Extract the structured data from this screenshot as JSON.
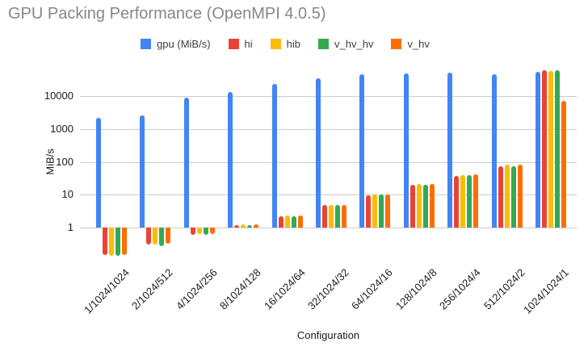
{
  "title": "GPU Packing Performance (OpenMPI 4.0.5)",
  "colors": {
    "blue": "#4285F4",
    "red": "#EA4335",
    "yellow": "#FBBC04",
    "green": "#34A853",
    "orange": "#FF6D01",
    "title_text": "#878787",
    "axis_text": "#1a1a1a",
    "gridline": "#cccccc"
  },
  "chart_data": {
    "type": "bar",
    "title": "GPU Packing Performance (OpenMPI 4.0.5)",
    "xlabel": "Configuration",
    "ylabel": "MiB/s",
    "y_scale": "log",
    "y_ticks": [
      1,
      10,
      100,
      1000,
      10000
    ],
    "ylim": [
      0.1,
      70000
    ],
    "grid": true,
    "legend_position": "top",
    "categories": [
      "1/1024/1024",
      "2/1024/512",
      "4/1024/256",
      "8/1024/128",
      "16/1024/64",
      "32/1024/32",
      "64/1024/16",
      "128/1024/8",
      "256/1024/4",
      "512/1024/2",
      "1024/1024/1"
    ],
    "series": [
      {
        "name": "gpu (MiB/s)",
        "color": "#4285F4",
        "values": [
          2200,
          2600,
          9000,
          13500,
          24000,
          34000,
          45000,
          48000,
          51000,
          45000,
          54000
        ]
      },
      {
        "name": "hi",
        "color": "#EA4335",
        "values": [
          0.15,
          0.3,
          0.6,
          1.2,
          2.2,
          4.8,
          9.8,
          20,
          38,
          73,
          61000
        ]
      },
      {
        "name": "hib",
        "color": "#FBBC04",
        "values": [
          0.14,
          0.3,
          0.62,
          1.25,
          2.3,
          5.0,
          10.2,
          21,
          40,
          80,
          58000
        ]
      },
      {
        "name": "v_hv_hv",
        "color": "#34A853",
        "values": [
          0.14,
          0.28,
          0.6,
          1.2,
          2.25,
          4.9,
          10.1,
          20.5,
          39,
          75,
          61000
        ]
      },
      {
        "name": "v_hv",
        "color": "#FF6D01",
        "values": [
          0.15,
          0.32,
          0.63,
          1.25,
          2.3,
          5.0,
          10.4,
          21,
          41,
          80,
          7000
        ]
      }
    ]
  }
}
